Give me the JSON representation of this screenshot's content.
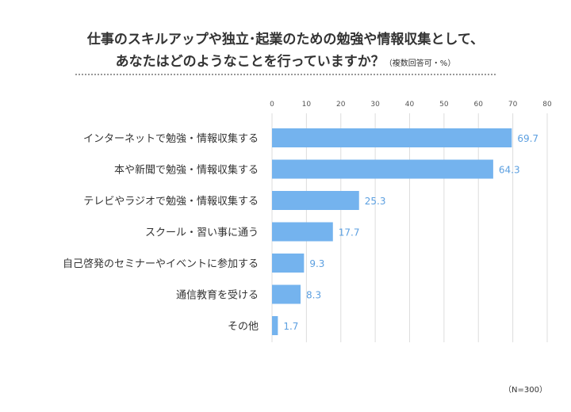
{
  "title": {
    "line1": "仕事のスキルアップや独立･起業のための勉強や情報収集として、",
    "line2": "あなたはどのようなことを行っていますか？",
    "note": "（複数回答可・%）"
  },
  "footnote": "（N=300）",
  "colors": {
    "bar": "#74b3ee",
    "value_label": "#5b9fe0",
    "grid": "#dddddd",
    "axis_text": "#555555"
  },
  "chart_data": {
    "type": "bar",
    "orientation": "horizontal",
    "title": "仕事のスキルアップや独立･起業のための勉強や情報収集として、あなたはどのようなことを行っていますか？",
    "categories": [
      "インターネットで勉強・情報収集する",
      "本や新聞で勉強・情報収集する",
      "テレビやラジオで勉強・情報収集する",
      "スクール・習い事に通う",
      "自己啓発のセミナーやイベントに参加する",
      "通信教育を受ける",
      "その他"
    ],
    "values": [
      69.7,
      64.3,
      25.3,
      17.7,
      9.3,
      8.3,
      1.7
    ],
    "value_labels": [
      "69.7",
      "64.3",
      "25.3",
      "17.7",
      "9.3",
      "8.3",
      "1.7"
    ],
    "xlim": [
      0,
      80
    ],
    "xticks": [
      0,
      10,
      20,
      30,
      40,
      50,
      60,
      70,
      80
    ],
    "xaxis_position": "top",
    "grid": true,
    "legend": "none"
  }
}
